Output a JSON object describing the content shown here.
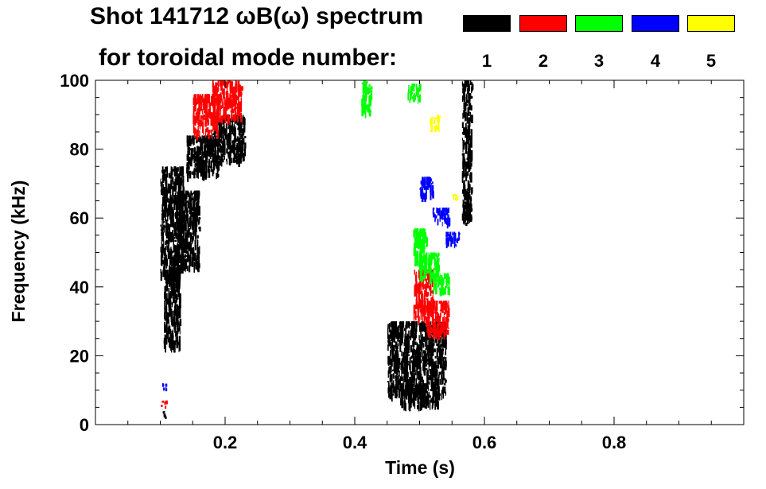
{
  "title_line1": "Shot 141712 ωB(ω) spectrum",
  "title_line2": "for toroidal mode number:",
  "legend": [
    {
      "label": "1",
      "color": "#000000"
    },
    {
      "label": "2",
      "color": "#ff0000"
    },
    {
      "label": "3",
      "color": "#00ff00"
    },
    {
      "label": "4",
      "color": "#0000ff"
    },
    {
      "label": "5",
      "color": "#ffff00"
    }
  ],
  "chart_data": {
    "type": "scatter",
    "title": "Shot 141712 ωB(ω) spectrum for toroidal mode number",
    "xlabel": "Time (s)",
    "ylabel": "Frequency (kHz)",
    "xlim": [
      0.0,
      1.0
    ],
    "ylim": [
      0,
      100
    ],
    "x_ticks": [
      0.2,
      0.4,
      0.6,
      0.8
    ],
    "x_tick_labels": [
      "0.2",
      "0.4",
      "0.6",
      "0.8"
    ],
    "y_ticks": [
      0,
      20,
      40,
      60,
      80,
      100
    ],
    "y_tick_labels": [
      "0",
      "20",
      "40",
      "60",
      "80",
      "100"
    ],
    "series": [
      {
        "name": "n=1",
        "color": "#000000",
        "regions": [
          {
            "t0": 0.1,
            "t1": 0.135,
            "f0": 42,
            "f1": 75
          },
          {
            "t0": 0.105,
            "t1": 0.13,
            "f0": 22,
            "f1": 45
          },
          {
            "t0": 0.125,
            "t1": 0.16,
            "f0": 45,
            "f1": 68
          },
          {
            "t0": 0.14,
            "t1": 0.19,
            "f0": 72,
            "f1": 84
          },
          {
            "t0": 0.18,
            "t1": 0.23,
            "f0": 76,
            "f1": 90
          },
          {
            "t0": 0.45,
            "t1": 0.54,
            "f0": 8,
            "f1": 30
          },
          {
            "t0": 0.47,
            "t1": 0.53,
            "f0": 5,
            "f1": 12
          },
          {
            "t0": 0.565,
            "t1": 0.58,
            "f0": 58,
            "f1": 100
          },
          {
            "t0": 0.1,
            "t1": 0.11,
            "f0": 2,
            "f1": 4
          }
        ]
      },
      {
        "name": "n=2",
        "color": "#ff0000",
        "regions": [
          {
            "t0": 0.15,
            "t1": 0.19,
            "f0": 84,
            "f1": 96
          },
          {
            "t0": 0.18,
            "t1": 0.225,
            "f0": 88,
            "f1": 100
          },
          {
            "t0": 0.49,
            "t1": 0.52,
            "f0": 30,
            "f1": 45
          },
          {
            "t0": 0.51,
            "t1": 0.545,
            "f0": 26,
            "f1": 36
          },
          {
            "t0": 0.1,
            "t1": 0.11,
            "f0": 5,
            "f1": 7
          }
        ]
      },
      {
        "name": "n=3",
        "color": "#00ff00",
        "regions": [
          {
            "t0": 0.41,
            "t1": 0.425,
            "f0": 90,
            "f1": 100
          },
          {
            "t0": 0.49,
            "t1": 0.51,
            "f0": 46,
            "f1": 57
          },
          {
            "t0": 0.5,
            "t1": 0.53,
            "f0": 42,
            "f1": 50
          },
          {
            "t0": 0.52,
            "t1": 0.545,
            "f0": 38,
            "f1": 44
          },
          {
            "t0": 0.48,
            "t1": 0.5,
            "f0": 94,
            "f1": 99
          }
        ]
      },
      {
        "name": "n=4",
        "color": "#0000ff",
        "regions": [
          {
            "t0": 0.5,
            "t1": 0.52,
            "f0": 66,
            "f1": 72
          },
          {
            "t0": 0.52,
            "t1": 0.545,
            "f0": 58,
            "f1": 63
          },
          {
            "t0": 0.54,
            "t1": 0.56,
            "f0": 52,
            "f1": 56
          },
          {
            "t0": 0.1,
            "t1": 0.108,
            "f0": 10,
            "f1": 12
          }
        ]
      },
      {
        "name": "n=5",
        "color": "#ffff00",
        "regions": [
          {
            "t0": 0.515,
            "t1": 0.53,
            "f0": 85,
            "f1": 90
          },
          {
            "t0": 0.55,
            "t1": 0.56,
            "f0": 65,
            "f1": 67
          }
        ]
      }
    ]
  }
}
